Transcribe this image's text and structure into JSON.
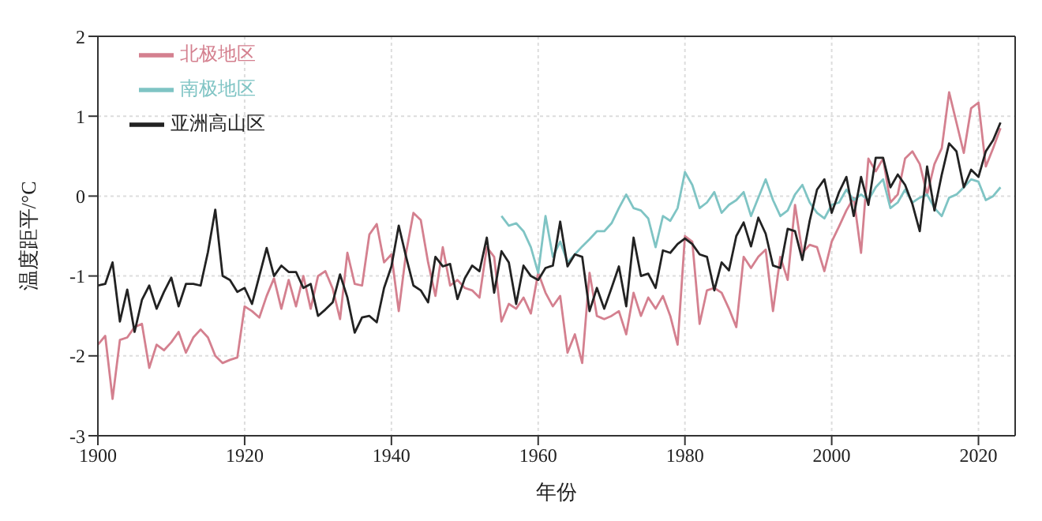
{
  "chart_data": {
    "type": "line",
    "xlabel": "年份",
    "ylabel": "温度距平/°C",
    "xlim": [
      1900,
      2025
    ],
    "ylim": [
      -3,
      2
    ],
    "xticks": [
      1900,
      1920,
      1940,
      1960,
      1980,
      2000,
      2020
    ],
    "yticks": [
      -3,
      -2,
      -1,
      0,
      1,
      2
    ],
    "grid": true,
    "legend": "top left",
    "marker": "none",
    "line_style": "solid",
    "x": [
      1900,
      1901,
      1902,
      1903,
      1904,
      1905,
      1906,
      1907,
      1908,
      1909,
      1910,
      1911,
      1912,
      1913,
      1914,
      1915,
      1916,
      1917,
      1918,
      1919,
      1920,
      1921,
      1922,
      1923,
      1924,
      1925,
      1926,
      1927,
      1928,
      1929,
      1930,
      1931,
      1932,
      1933,
      1934,
      1935,
      1936,
      1937,
      1938,
      1939,
      1940,
      1941,
      1942,
      1943,
      1944,
      1945,
      1946,
      1947,
      1948,
      1949,
      1950,
      1951,
      1952,
      1953,
      1954,
      1955,
      1956,
      1957,
      1958,
      1959,
      1960,
      1961,
      1962,
      1963,
      1964,
      1965,
      1966,
      1967,
      1968,
      1969,
      1970,
      1971,
      1972,
      1973,
      1974,
      1975,
      1976,
      1977,
      1978,
      1979,
      1980,
      1981,
      1982,
      1983,
      1984,
      1985,
      1986,
      1987,
      1988,
      1989,
      1990,
      1991,
      1992,
      1993,
      1994,
      1995,
      1996,
      1997,
      1998,
      1999,
      2000,
      2001,
      2002,
      2003,
      2004,
      2005,
      2006,
      2007,
      2008,
      2009,
      2010,
      2011,
      2012,
      2013,
      2014,
      2015,
      2016,
      2017,
      2018,
      2019,
      2020,
      2021,
      2022,
      2023
    ],
    "series": [
      {
        "name": "北极地区",
        "color": "#d4808f",
        "values": [
          -1.86,
          -1.75,
          -2.54,
          -1.8,
          -1.77,
          -1.64,
          -1.6,
          -2.15,
          -1.86,
          -1.93,
          -1.83,
          -1.7,
          -1.96,
          -1.77,
          -1.67,
          -1.77,
          -2.0,
          -2.09,
          -2.05,
          -2.02,
          -1.38,
          -1.44,
          -1.52,
          -1.25,
          -1.03,
          -1.41,
          -1.05,
          -1.38,
          -1.0,
          -1.41,
          -1.0,
          -0.94,
          -1.16,
          -1.54,
          -0.71,
          -1.1,
          -1.12,
          -0.48,
          -0.35,
          -0.83,
          -0.73,
          -1.44,
          -0.71,
          -0.21,
          -0.3,
          -0.83,
          -1.25,
          -0.64,
          -1.12,
          -1.05,
          -1.15,
          -1.18,
          -1.27,
          -0.64,
          -0.76,
          -1.57,
          -1.35,
          -1.41,
          -1.27,
          -1.47,
          -0.96,
          -1.21,
          -1.38,
          -1.25,
          -1.96,
          -1.73,
          -2.09,
          -0.96,
          -1.5,
          -1.54,
          -1.5,
          -1.44,
          -1.73,
          -1.21,
          -1.5,
          -1.27,
          -1.41,
          -1.25,
          -1.5,
          -1.86,
          -0.5,
          -0.57,
          -1.6,
          -1.18,
          -1.15,
          -1.21,
          -1.41,
          -1.64,
          -0.76,
          -0.9,
          -0.76,
          -0.67,
          -1.44,
          -0.76,
          -1.05,
          -0.11,
          -0.71,
          -0.61,
          -0.64,
          -0.94,
          -0.57,
          -0.38,
          -0.18,
          -0.02,
          -0.71,
          0.47,
          0.31,
          0.47,
          -0.08,
          0.02,
          0.47,
          0.56,
          0.4,
          0.02,
          0.4,
          0.6,
          1.3,
          0.92,
          0.54,
          1.1,
          1.17,
          0.37,
          0.6,
          0.85
        ]
      },
      {
        "name": "南极地区",
        "color": "#7fc4c4",
        "values": [
          null,
          null,
          null,
          null,
          null,
          null,
          null,
          null,
          null,
          null,
          null,
          null,
          null,
          null,
          null,
          null,
          null,
          null,
          null,
          null,
          null,
          null,
          null,
          null,
          null,
          null,
          null,
          null,
          null,
          null,
          null,
          null,
          null,
          null,
          null,
          null,
          null,
          null,
          null,
          null,
          null,
          null,
          null,
          null,
          null,
          null,
          null,
          null,
          null,
          null,
          null,
          null,
          null,
          null,
          null,
          -0.25,
          -0.37,
          -0.34,
          -0.44,
          -0.64,
          -0.96,
          -0.25,
          -0.76,
          -0.57,
          -0.83,
          -0.73,
          -0.63,
          -0.54,
          -0.44,
          -0.44,
          -0.34,
          -0.15,
          0.02,
          -0.15,
          -0.18,
          -0.28,
          -0.64,
          -0.25,
          -0.31,
          -0.15,
          0.3,
          0.14,
          -0.15,
          -0.08,
          0.05,
          -0.21,
          -0.11,
          -0.05,
          0.05,
          -0.25,
          -0.02,
          0.21,
          -0.05,
          -0.25,
          -0.18,
          0.02,
          0.14,
          -0.08,
          -0.21,
          -0.28,
          -0.11,
          -0.08,
          0.08,
          -0.05,
          0.02,
          -0.05,
          0.11,
          0.21,
          -0.15,
          -0.08,
          0.08,
          -0.08,
          -0.02,
          0.02,
          -0.15,
          -0.25,
          -0.02,
          0.02,
          0.11,
          0.21,
          0.18,
          -0.05,
          0.0,
          0.11
        ]
      },
      {
        "name": "亚洲高山区",
        "color": "#222222",
        "values": [
          -1.12,
          -1.1,
          -0.83,
          -1.57,
          -1.17,
          -1.7,
          -1.3,
          -1.12,
          -1.41,
          -1.2,
          -1.02,
          -1.38,
          -1.1,
          -1.1,
          -1.12,
          -0.7,
          -0.17,
          -1.0,
          -1.05,
          -1.2,
          -1.15,
          -1.35,
          -1.0,
          -0.65,
          -1.0,
          -0.87,
          -0.95,
          -0.95,
          -1.15,
          -1.1,
          -1.5,
          -1.42,
          -1.33,
          -0.98,
          -1.27,
          -1.71,
          -1.52,
          -1.5,
          -1.58,
          -1.15,
          -0.88,
          -0.37,
          -0.76,
          -1.12,
          -1.18,
          -1.33,
          -0.76,
          -0.88,
          -0.85,
          -1.29,
          -1.03,
          -0.87,
          -0.94,
          -0.52,
          -1.21,
          -0.69,
          -0.83,
          -1.35,
          -0.87,
          -1.0,
          -1.05,
          -0.9,
          -0.87,
          -0.32,
          -0.88,
          -0.73,
          -0.76,
          -1.44,
          -1.15,
          -1.41,
          -1.15,
          -0.88,
          -1.38,
          -0.52,
          -1.0,
          -0.97,
          -1.15,
          -0.68,
          -0.71,
          -0.6,
          -0.53,
          -0.6,
          -0.73,
          -0.76,
          -1.18,
          -0.83,
          -0.93,
          -0.5,
          -0.33,
          -0.63,
          -0.27,
          -0.47,
          -0.87,
          -0.9,
          -0.41,
          -0.44,
          -0.8,
          -0.31,
          0.08,
          0.21,
          -0.21,
          0.05,
          0.24,
          -0.25,
          0.24,
          -0.11,
          0.48,
          0.48,
          0.11,
          0.27,
          0.14,
          -0.1,
          -0.44,
          0.37,
          -0.18,
          0.27,
          0.66,
          0.56,
          0.11,
          0.33,
          0.24,
          0.56,
          0.7,
          0.92
        ]
      }
    ]
  }
}
